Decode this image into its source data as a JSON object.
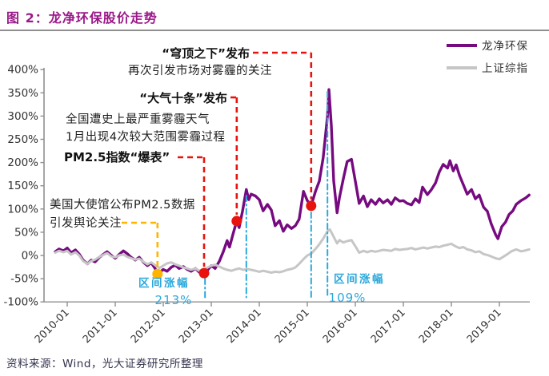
{
  "header": {
    "title": "图 2：龙净环保股价走势"
  },
  "footer": {
    "source": "资料来源：Wind，光大证券研究所整理"
  },
  "chart_data": {
    "type": "line",
    "title": "龙净环保股价走势",
    "grid": false,
    "legend_position": "top-right",
    "x_ticks": [
      "2010-01",
      "2011-01",
      "2012-01",
      "2013-01",
      "2014-01",
      "2015-01",
      "2016-01",
      "2017-01",
      "2018-01",
      "2019-01"
    ],
    "y_ticks": [
      "400%",
      "350%",
      "300%",
      "250%",
      "200%",
      "150%",
      "100%",
      "50%",
      "0%",
      "-50%",
      "-100%"
    ],
    "y_range_pct": [
      -100,
      400
    ],
    "x_range_years": [
      2009.7,
      2019.65
    ],
    "series": [
      {
        "name": "龙净环保",
        "color": "#760b80",
        "points": [
          [
            2009.75,
            8
          ],
          [
            2009.83,
            14
          ],
          [
            2009.92,
            10
          ],
          [
            2010.0,
            16
          ],
          [
            2010.08,
            6
          ],
          [
            2010.17,
            12
          ],
          [
            2010.25,
            3
          ],
          [
            2010.33,
            -10
          ],
          [
            2010.42,
            -18
          ],
          [
            2010.5,
            -10
          ],
          [
            2010.58,
            -14
          ],
          [
            2010.67,
            -4
          ],
          [
            2010.75,
            2
          ],
          [
            2010.83,
            8
          ],
          [
            2010.92,
            0
          ],
          [
            2011.0,
            -6
          ],
          [
            2011.08,
            2
          ],
          [
            2011.17,
            10
          ],
          [
            2011.25,
            4
          ],
          [
            2011.33,
            -4
          ],
          [
            2011.42,
            -10
          ],
          [
            2011.5,
            -4
          ],
          [
            2011.58,
            -14
          ],
          [
            2011.67,
            -22
          ],
          [
            2011.75,
            -16
          ],
          [
            2011.83,
            -28
          ],
          [
            2011.88,
            -40
          ],
          [
            2012.0,
            -30
          ],
          [
            2012.08,
            -34
          ],
          [
            2012.17,
            -25
          ],
          [
            2012.25,
            -21
          ],
          [
            2012.33,
            -28
          ],
          [
            2012.42,
            -24
          ],
          [
            2012.5,
            -30
          ],
          [
            2012.58,
            -34
          ],
          [
            2012.67,
            -28
          ],
          [
            2012.75,
            -36
          ],
          [
            2012.85,
            -38
          ],
          [
            2012.92,
            -32
          ],
          [
            2013.0,
            -22
          ],
          [
            2013.08,
            -28
          ],
          [
            2013.17,
            -12
          ],
          [
            2013.25,
            8
          ],
          [
            2013.33,
            32
          ],
          [
            2013.38,
            18
          ],
          [
            2013.45,
            45
          ],
          [
            2013.53,
            74
          ],
          [
            2013.58,
            60
          ],
          [
            2013.65,
            95
          ],
          [
            2013.73,
            142
          ],
          [
            2013.78,
            120
          ],
          [
            2013.83,
            132
          ],
          [
            2013.92,
            128
          ],
          [
            2014.0,
            120
          ],
          [
            2014.08,
            96
          ],
          [
            2014.17,
            110
          ],
          [
            2014.25,
            98
          ],
          [
            2014.33,
            64
          ],
          [
            2014.42,
            75
          ],
          [
            2014.5,
            52
          ],
          [
            2014.58,
            66
          ],
          [
            2014.67,
            58
          ],
          [
            2014.75,
            64
          ],
          [
            2014.83,
            78
          ],
          [
            2014.92,
            138
          ],
          [
            2015.0,
            118
          ],
          [
            2015.08,
            107
          ],
          [
            2015.17,
            138
          ],
          [
            2015.25,
            160
          ],
          [
            2015.33,
            210
          ],
          [
            2015.42,
            300
          ],
          [
            2015.45,
            357
          ],
          [
            2015.5,
            280
          ],
          [
            2015.55,
            160
          ],
          [
            2015.62,
            92
          ],
          [
            2015.67,
            125
          ],
          [
            2015.75,
            165
          ],
          [
            2015.83,
            202
          ],
          [
            2015.92,
            207
          ],
          [
            2016.0,
            160
          ],
          [
            2016.08,
            112
          ],
          [
            2016.17,
            128
          ],
          [
            2016.25,
            105
          ],
          [
            2016.33,
            120
          ],
          [
            2016.42,
            110
          ],
          [
            2016.5,
            122
          ],
          [
            2016.58,
            113
          ],
          [
            2016.67,
            120
          ],
          [
            2016.75,
            110
          ],
          [
            2016.83,
            124
          ],
          [
            2016.92,
            117
          ],
          [
            2017.0,
            118
          ],
          [
            2017.08,
            112
          ],
          [
            2017.17,
            109
          ],
          [
            2017.25,
            122
          ],
          [
            2017.33,
            114
          ],
          [
            2017.4,
            147
          ],
          [
            2017.5,
            131
          ],
          [
            2017.58,
            141
          ],
          [
            2017.67,
            156
          ],
          [
            2017.75,
            180
          ],
          [
            2017.83,
            196
          ],
          [
            2017.92,
            188
          ],
          [
            2017.97,
            204
          ],
          [
            2018.04,
            182
          ],
          [
            2018.1,
            195
          ],
          [
            2018.17,
            172
          ],
          [
            2018.25,
            152
          ],
          [
            2018.33,
            132
          ],
          [
            2018.42,
            142
          ],
          [
            2018.5,
            122
          ],
          [
            2018.58,
            130
          ],
          [
            2018.67,
            104
          ],
          [
            2018.75,
            95
          ],
          [
            2018.83,
            68
          ],
          [
            2018.92,
            45
          ],
          [
            2018.97,
            36
          ],
          [
            2019.05,
            62
          ],
          [
            2019.13,
            72
          ],
          [
            2019.2,
            88
          ],
          [
            2019.28,
            96
          ],
          [
            2019.35,
            110
          ],
          [
            2019.45,
            118
          ],
          [
            2019.55,
            124
          ],
          [
            2019.62,
            130
          ]
        ]
      },
      {
        "name": "上证综指",
        "color": "#c6c6c6",
        "points": [
          [
            2009.75,
            6
          ],
          [
            2009.83,
            10
          ],
          [
            2009.92,
            7
          ],
          [
            2010.0,
            10
          ],
          [
            2010.08,
            2
          ],
          [
            2010.17,
            7
          ],
          [
            2010.25,
            0
          ],
          [
            2010.33,
            -12
          ],
          [
            2010.42,
            -18
          ],
          [
            2010.5,
            -12
          ],
          [
            2010.58,
            -9
          ],
          [
            2010.67,
            -3
          ],
          [
            2010.75,
            1
          ],
          [
            2010.83,
            5
          ],
          [
            2010.92,
            -2
          ],
          [
            2011.0,
            -4
          ],
          [
            2011.08,
            0
          ],
          [
            2011.17,
            2
          ],
          [
            2011.25,
            -3
          ],
          [
            2011.33,
            -6
          ],
          [
            2011.42,
            -9
          ],
          [
            2011.5,
            -7
          ],
          [
            2011.58,
            -13
          ],
          [
            2011.67,
            -19
          ],
          [
            2011.75,
            -15
          ],
          [
            2011.83,
            -21
          ],
          [
            2011.92,
            -27
          ],
          [
            2012.0,
            -22
          ],
          [
            2012.08,
            -17
          ],
          [
            2012.17,
            -15
          ],
          [
            2012.25,
            -19
          ],
          [
            2012.33,
            -22
          ],
          [
            2012.42,
            -26
          ],
          [
            2012.5,
            -28
          ],
          [
            2012.58,
            -31
          ],
          [
            2012.67,
            -28
          ],
          [
            2012.75,
            -33
          ],
          [
            2012.85,
            -31
          ],
          [
            2012.92,
            -26
          ],
          [
            2013.0,
            -22
          ],
          [
            2013.08,
            -20
          ],
          [
            2013.17,
            -24
          ],
          [
            2013.25,
            -28
          ],
          [
            2013.33,
            -31
          ],
          [
            2013.42,
            -33
          ],
          [
            2013.5,
            -30
          ],
          [
            2013.58,
            -28
          ],
          [
            2013.67,
            -31
          ],
          [
            2013.75,
            -29
          ],
          [
            2013.83,
            -31
          ],
          [
            2013.92,
            -33
          ],
          [
            2014.0,
            -35
          ],
          [
            2014.08,
            -33
          ],
          [
            2014.17,
            -35
          ],
          [
            2014.25,
            -37
          ],
          [
            2014.33,
            -35
          ],
          [
            2014.42,
            -36
          ],
          [
            2014.5,
            -34
          ],
          [
            2014.58,
            -31
          ],
          [
            2014.67,
            -29
          ],
          [
            2014.75,
            -26
          ],
          [
            2014.83,
            -18
          ],
          [
            2014.92,
            -8
          ],
          [
            2015.0,
            0
          ],
          [
            2015.08,
            4
          ],
          [
            2015.17,
            14
          ],
          [
            2015.25,
            24
          ],
          [
            2015.33,
            36
          ],
          [
            2015.42,
            52
          ],
          [
            2015.47,
            56
          ],
          [
            2015.55,
            40
          ],
          [
            2015.62,
            26
          ],
          [
            2015.67,
            33
          ],
          [
            2015.75,
            28
          ],
          [
            2015.83,
            31
          ],
          [
            2015.92,
            33
          ],
          [
            2016.0,
            20
          ],
          [
            2016.08,
            6
          ],
          [
            2016.17,
            10
          ],
          [
            2016.25,
            7
          ],
          [
            2016.33,
            10
          ],
          [
            2016.42,
            8
          ],
          [
            2016.5,
            10
          ],
          [
            2016.58,
            12
          ],
          [
            2016.67,
            11
          ],
          [
            2016.75,
            10
          ],
          [
            2016.83,
            14
          ],
          [
            2016.92,
            12
          ],
          [
            2017.0,
            13
          ],
          [
            2017.08,
            14
          ],
          [
            2017.17,
            16
          ],
          [
            2017.25,
            13
          ],
          [
            2017.33,
            15
          ],
          [
            2017.42,
            17
          ],
          [
            2017.5,
            15
          ],
          [
            2017.58,
            17
          ],
          [
            2017.67,
            19
          ],
          [
            2017.75,
            18
          ],
          [
            2017.83,
            21
          ],
          [
            2017.92,
            23
          ],
          [
            2018.0,
            25
          ],
          [
            2018.08,
            20
          ],
          [
            2018.17,
            16
          ],
          [
            2018.25,
            18
          ],
          [
            2018.33,
            13
          ],
          [
            2018.42,
            11
          ],
          [
            2018.5,
            7
          ],
          [
            2018.58,
            9
          ],
          [
            2018.67,
            3
          ],
          [
            2018.75,
            1
          ],
          [
            2018.83,
            -2
          ],
          [
            2018.92,
            -6
          ],
          [
            2019.0,
            -8
          ],
          [
            2019.08,
            -3
          ],
          [
            2019.17,
            3
          ],
          [
            2019.25,
            9
          ],
          [
            2019.35,
            13
          ],
          [
            2019.45,
            9
          ],
          [
            2019.55,
            11
          ],
          [
            2019.62,
            13
          ]
        ]
      }
    ],
    "events": [
      {
        "name": "us-embassy-pm25",
        "date_year": 2011.88,
        "value_pct": -40,
        "color": "#ffb400",
        "label_lines": [
          "美国大使馆公布PM2.5数据",
          "引发舆论关注"
        ]
      },
      {
        "name": "pm25-off-the-charts",
        "date_year": 2012.85,
        "value_pct": -38,
        "color": "#e8130c",
        "label_lines": [
          "全国遭史上最严重雾霾天气",
          "1月出现4次较大范围雾霾过程",
          "PM2.5指数“爆表”"
        ]
      },
      {
        "name": "ten-air-measures-released",
        "date_year": 2013.53,
        "value_pct": 74,
        "color": "#e8130c",
        "label_lines": [
          "“大气十条”发布"
        ]
      },
      {
        "name": "under-the-dome-released",
        "date_year": 2015.08,
        "value_pct": 107,
        "color": "#e8130c",
        "label_lines": [
          "“穹顶之下”发布",
          "再次引发市场对雾霾的关注"
        ]
      }
    ],
    "intervals": [
      {
        "name": "interval-2013-rally",
        "t1": 2012.87,
        "t2": 2013.73,
        "label": "区间涨幅",
        "value": "213%",
        "color": "#29a8dc"
      },
      {
        "name": "interval-2015-rally",
        "t1": 2015.08,
        "t2": 2015.42,
        "label": "区间涨幅",
        "value": "109%",
        "color": "#29a8dc"
      }
    ]
  }
}
